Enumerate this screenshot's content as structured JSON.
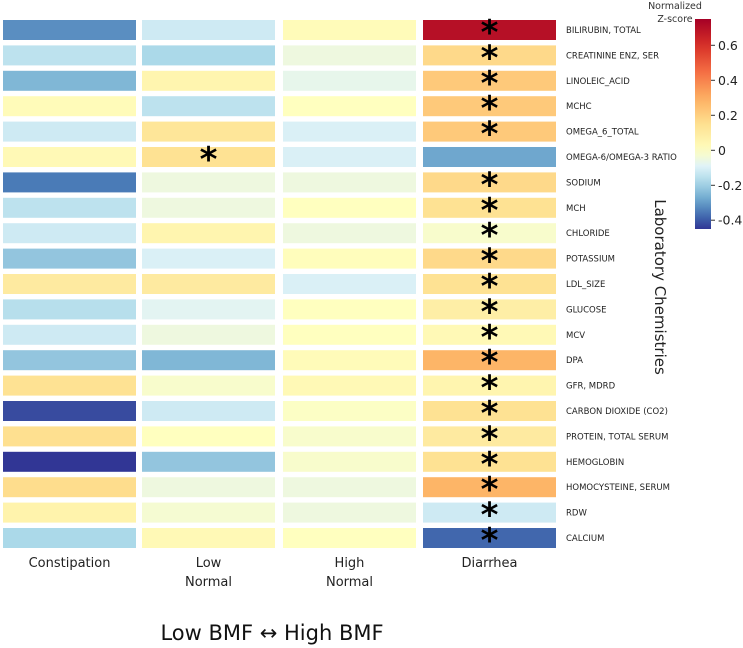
{
  "chart_data": {
    "type": "heatmap",
    "columns": [
      "Constipation",
      "Low\nNormal",
      "High\nNormal",
      "Diarrhea"
    ],
    "rows": [
      "BILIRUBIN, TOTAL",
      "CREATININE ENZ, SER",
      "LINOLEIC_ACID",
      "MCHC",
      "OMEGA_6_TOTAL",
      "OMEGA-6/OMEGA-3 RATIO",
      "SODIUM",
      "MCH",
      "CHLORIDE",
      "POTASSIUM",
      "LDL_SIZE",
      "GLUCOSE",
      "MCV",
      "DPA",
      "GFR, MDRD",
      "CARBON DIOXIDE (CO2)",
      "PROTEIN, TOTAL SERUM",
      "HEMOGLOBIN",
      "HOMOCYSTEINE, SERUM",
      "RDW",
      "CALCIUM"
    ],
    "values": [
      [
        -0.32,
        -0.12,
        0.02,
        0.7
      ],
      [
        -0.15,
        -0.18,
        -0.05,
        0.17
      ],
      [
        -0.25,
        0.05,
        -0.07,
        0.22
      ],
      [
        0.02,
        -0.15,
        0.0,
        0.22
      ],
      [
        -0.12,
        0.12,
        -0.1,
        0.22
      ],
      [
        0.03,
        0.14,
        -0.1,
        -0.28
      ],
      [
        -0.35,
        -0.05,
        -0.05,
        0.17
      ],
      [
        -0.15,
        -0.05,
        0.0,
        0.14
      ],
      [
        -0.12,
        0.05,
        -0.05,
        -0.02
      ],
      [
        -0.22,
        -0.1,
        0.01,
        0.17
      ],
      [
        0.1,
        0.1,
        -0.1,
        0.14
      ],
      [
        -0.16,
        -0.08,
        0.0,
        0.08
      ],
      [
        -0.12,
        -0.05,
        0.0,
        0.03
      ],
      [
        -0.22,
        -0.25,
        0.02,
        0.28
      ],
      [
        0.14,
        -0.02,
        0.03,
        0.05
      ],
      [
        -0.42,
        -0.12,
        -0.01,
        0.14
      ],
      [
        0.15,
        0.0,
        -0.02,
        0.1
      ],
      [
        -0.48,
        -0.22,
        -0.02,
        0.14
      ],
      [
        0.16,
        -0.05,
        -0.05,
        0.28
      ],
      [
        0.06,
        -0.03,
        -0.05,
        -0.12
      ],
      [
        -0.18,
        0.03,
        0.0,
        -0.38
      ]
    ],
    "significant": [
      [
        0,
        3
      ],
      [
        1,
        3
      ],
      [
        2,
        3
      ],
      [
        3,
        3
      ],
      [
        4,
        3
      ],
      [
        5,
        1
      ],
      [
        6,
        3
      ],
      [
        7,
        3
      ],
      [
        8,
        3
      ],
      [
        9,
        3
      ],
      [
        10,
        3
      ],
      [
        11,
        3
      ],
      [
        12,
        3
      ],
      [
        13,
        3
      ],
      [
        14,
        3
      ],
      [
        15,
        3
      ],
      [
        16,
        3
      ],
      [
        17,
        3
      ],
      [
        18,
        3
      ],
      [
        19,
        3
      ],
      [
        20,
        3
      ]
    ],
    "marker": "*",
    "colorbar": {
      "title_lines": [
        "Normalized",
        "Z-score"
      ],
      "min": -0.45,
      "max": 0.75,
      "ticks": [
        0.6,
        0.4,
        0.2,
        0,
        -0.2,
        -0.4
      ],
      "tick_labels": [
        "0.6",
        "0.4",
        "0.2",
        "0",
        "-0.2",
        "-0.4"
      ],
      "palette": "RdYlBu_r"
    },
    "right_axis_title": "Laboratory Chemistries",
    "bottom_title": "Low BMF ↔ High BMF"
  }
}
